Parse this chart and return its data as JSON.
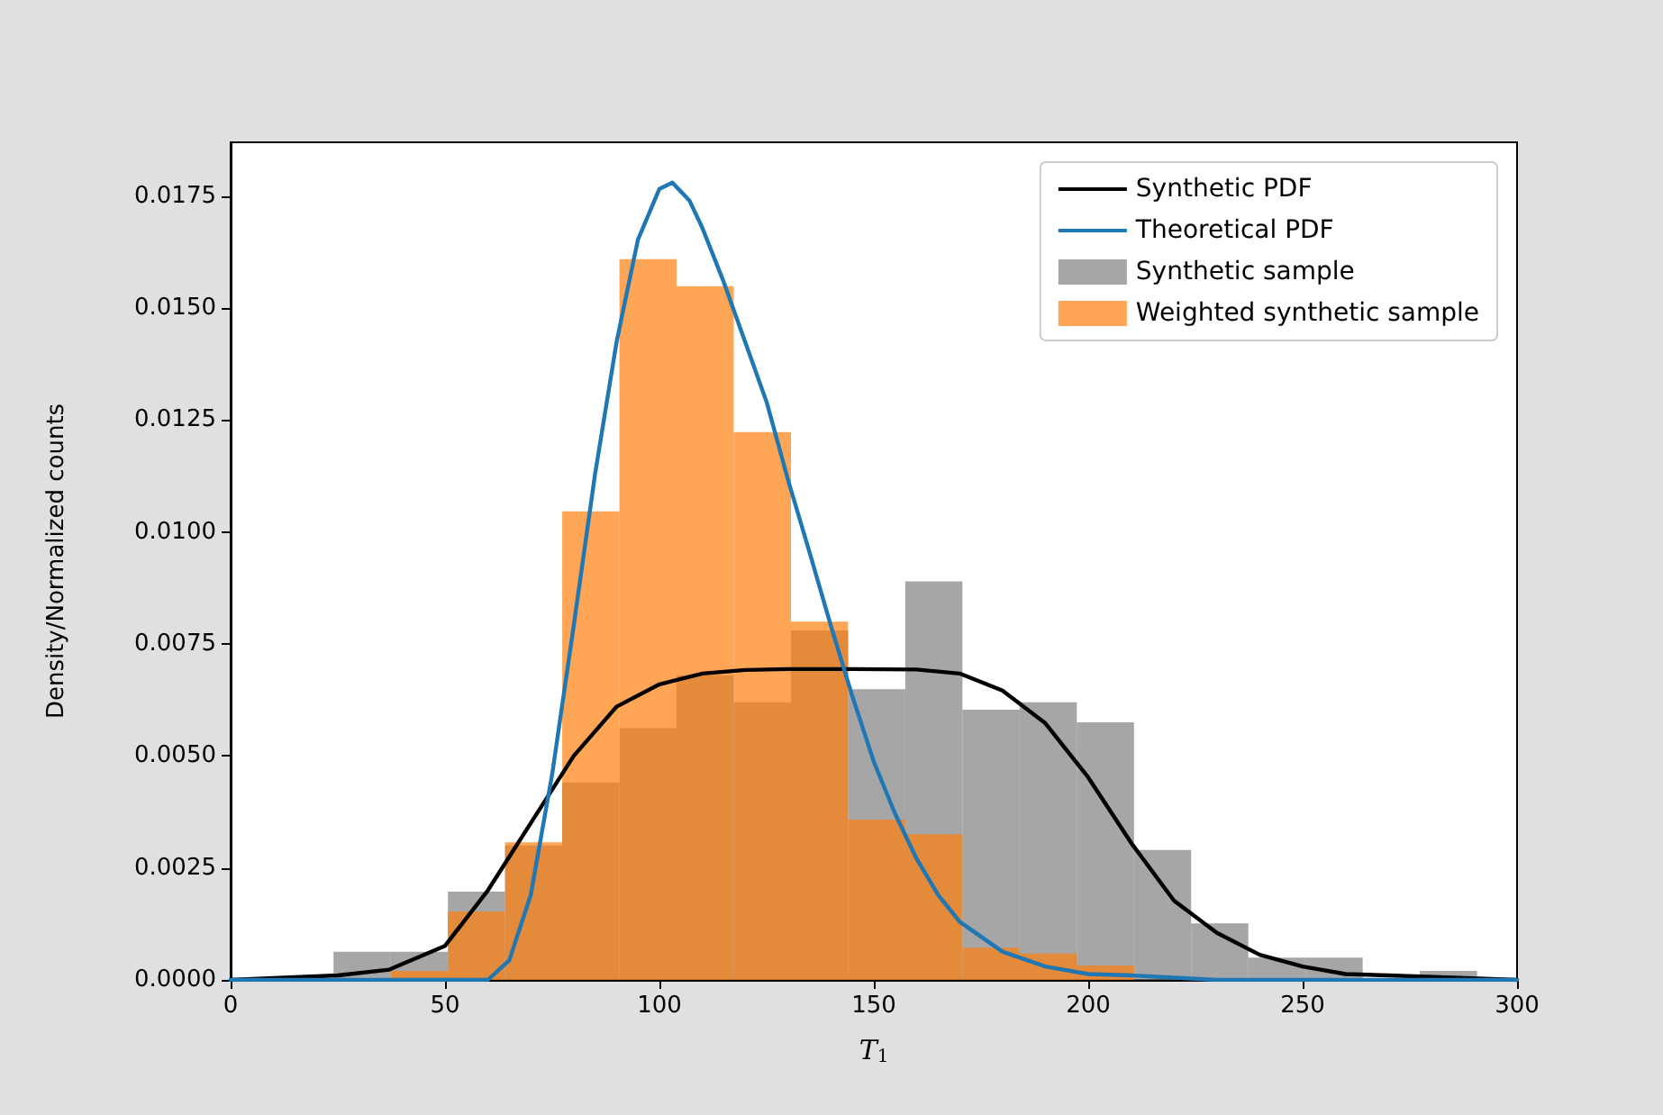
{
  "chart_data": {
    "type": "histogram",
    "xlabel": "T$_{1}$",
    "ylabel": "Density/Normalized counts",
    "bins": [
      24,
      37.33,
      50.67,
      64,
      77.33,
      90.67,
      104,
      117.33,
      130.67,
      144,
      157.33,
      170.67,
      184,
      197.33,
      210.67,
      224,
      237.33,
      250.67,
      264,
      277.33,
      290.67
    ],
    "series": [
      {
        "name": "Synthetic PDF",
        "type": "line",
        "color": "#000000",
        "x": [
          0,
          25,
          37,
          50,
          60,
          70,
          80,
          90,
          100,
          110,
          120,
          130,
          145,
          160,
          170,
          180,
          190,
          200,
          210,
          220,
          230,
          240,
          250,
          260,
          270,
          300
        ],
        "values": [
          0,
          0.0001,
          0.00023,
          0.00076,
          0.002,
          0.0035,
          0.005,
          0.0061,
          0.0066,
          0.00684,
          0.00692,
          0.00694,
          0.00694,
          0.00693,
          0.00684,
          0.00646,
          0.00573,
          0.00452,
          0.00306,
          0.00177,
          0.00105,
          0.00056,
          0.0003,
          0.00013,
          0.0001,
          0
        ]
      },
      {
        "name": "Theoretical PDF",
        "type": "line",
        "color": "#1f77b4",
        "x": [
          0,
          55,
          60,
          65,
          70,
          75,
          80,
          85,
          90,
          95,
          100,
          103,
          107,
          110,
          115,
          120,
          125,
          130,
          135,
          140,
          145,
          150,
          155,
          160,
          165,
          170,
          180,
          190,
          200,
          210,
          230,
          300
        ],
        "values": [
          0,
          0,
          0,
          0.00044,
          0.0019,
          0.0046,
          0.0079,
          0.0113,
          0.01424,
          0.01653,
          0.01766,
          0.0178,
          0.0174,
          0.01679,
          0.01558,
          0.01424,
          0.0129,
          0.01116,
          0.00955,
          0.0079,
          0.00633,
          0.00487,
          0.0037,
          0.0027,
          0.0019,
          0.0013,
          0.00063,
          0.0003,
          0.00013,
          0.0001,
          0,
          0
        ]
      },
      {
        "name": "Synthetic sample",
        "color": "#808080",
        "values": [
          0.00063,
          0.00063,
          0.00197,
          0.003,
          0.00441,
          0.00562,
          0.0068,
          0.0062,
          0.0078,
          0.00649,
          0.0089,
          0.00603,
          0.0062,
          0.00575,
          0.0029,
          0.00126,
          0.0005,
          0.0005,
          0,
          0.0002
        ]
      },
      {
        "name": "Weighted synthetic sample",
        "color": "#ff7f0e",
        "values": [
          0,
          0.0002,
          0.00153,
          0.00307,
          0.01046,
          0.01609,
          0.01549,
          0.01223,
          0.008,
          0.00358,
          0.00325,
          0.00072,
          0.00059,
          0.00032,
          0,
          0,
          0,
          0,
          0,
          0
        ]
      }
    ],
    "xlim": [
      0,
      300
    ],
    "xticks": [
      0,
      50,
      100,
      150,
      200,
      250,
      300
    ],
    "ylim": [
      0,
      0.0187
    ],
    "yticks": [
      {
        "value": 0,
        "label": "0.0000"
      },
      {
        "value": 0.0025,
        "label": "0.0025"
      },
      {
        "value": 0.005,
        "label": "0.0050"
      },
      {
        "value": 0.0075,
        "label": "0.0075"
      },
      {
        "value": 0.01,
        "label": "0.0100"
      },
      {
        "value": 0.0125,
        "label": "0.0125"
      },
      {
        "value": 0.015,
        "label": "0.0150"
      },
      {
        "value": 0.0175,
        "label": "0.0175"
      }
    ],
    "grid": false,
    "legend": "top right"
  }
}
